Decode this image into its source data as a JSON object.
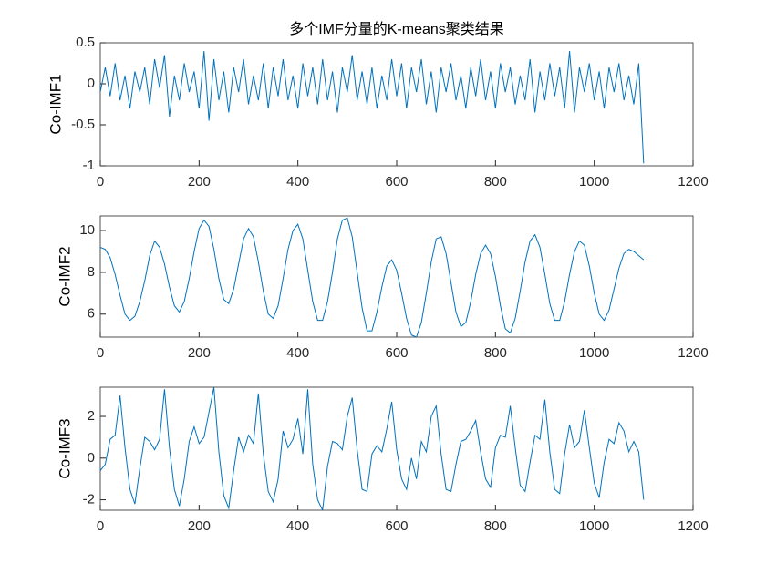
{
  "chart_data": [
    {
      "type": "line",
      "title": "多个IMF分量的K-means聚类结果",
      "ylabel": "Co-IMF1",
      "x": [
        0,
        10,
        20,
        30,
        40,
        50,
        60,
        70,
        80,
        90,
        100,
        110,
        120,
        130,
        140,
        150,
        160,
        170,
        180,
        190,
        200,
        210,
        220,
        230,
        240,
        250,
        260,
        270,
        280,
        290,
        300,
        310,
        320,
        330,
        340,
        350,
        360,
        370,
        380,
        390,
        400,
        410,
        420,
        430,
        440,
        450,
        460,
        470,
        480,
        490,
        500,
        510,
        520,
        530,
        540,
        550,
        560,
        570,
        580,
        590,
        600,
        610,
        620,
        630,
        640,
        650,
        660,
        670,
        680,
        690,
        700,
        710,
        720,
        730,
        740,
        750,
        760,
        770,
        780,
        790,
        800,
        810,
        820,
        830,
        840,
        850,
        860,
        870,
        880,
        890,
        900,
        910,
        920,
        930,
        940,
        950,
        960,
        970,
        980,
        990,
        1000,
        1010,
        1020,
        1030,
        1040,
        1050,
        1060,
        1070,
        1080,
        1090,
        1100
      ],
      "series": [
        {
          "color": "#0072bd",
          "values": [
            -0.1,
            0.2,
            -0.15,
            0.25,
            -0.2,
            0.1,
            -0.3,
            0.15,
            -0.1,
            0.2,
            -0.25,
            0.3,
            -0.05,
            0.35,
            -0.4,
            0.1,
            -0.2,
            0.25,
            -0.1,
            0.15,
            -0.3,
            0.4,
            -0.45,
            0.3,
            -0.2,
            0.15,
            -0.35,
            0.2,
            -0.1,
            0.3,
            -0.25,
            0.1,
            -0.2,
            0.25,
            -0.3,
            0.2,
            -0.15,
            0.3,
            -0.2,
            0.1,
            -0.3,
            0.25,
            -0.15,
            0.2,
            -0.25,
            0.3,
            -0.2,
            0.15,
            -0.35,
            0.2,
            -0.1,
            0.35,
            -0.2,
            0.15,
            -0.25,
            0.2,
            -0.3,
            0.1,
            -0.2,
            0.3,
            -0.15,
            0.25,
            -0.3,
            0.2,
            -0.1,
            0.3,
            -0.25,
            0.15,
            -0.35,
            0.2,
            -0.1,
            0.25,
            -0.2,
            0.1,
            -0.3,
            0.2,
            -0.15,
            0.3,
            -0.2,
            0.15,
            -0.3,
            0.25,
            -0.1,
            0.2,
            -0.25,
            0.1,
            -0.2,
            0.3,
            -0.35,
            0.15,
            -0.2,
            0.25,
            -0.15,
            0.2,
            -0.3,
            0.4,
            -0.35,
            0.2,
            -0.1,
            0.25,
            -0.2,
            0.15,
            -0.3,
            0.2,
            -0.1,
            0.25,
            -0.2,
            0.1,
            -0.25,
            0.25,
            -0.97
          ]
        }
      ],
      "xlim": [
        0,
        1200
      ],
      "xticks": [
        0,
        200,
        400,
        600,
        800,
        1000,
        1200
      ],
      "ylim": [
        -1,
        0.5
      ],
      "yticks": [
        -1,
        -0.5,
        0,
        0.5
      ]
    },
    {
      "type": "line",
      "ylabel": "Co-IMF2",
      "x": [
        0,
        10,
        20,
        30,
        40,
        50,
        60,
        70,
        80,
        90,
        100,
        110,
        120,
        130,
        140,
        150,
        160,
        170,
        180,
        190,
        200,
        210,
        220,
        230,
        240,
        250,
        260,
        270,
        280,
        290,
        300,
        310,
        320,
        330,
        340,
        350,
        360,
        370,
        380,
        390,
        400,
        410,
        420,
        430,
        440,
        450,
        460,
        470,
        480,
        490,
        500,
        510,
        520,
        530,
        540,
        550,
        560,
        570,
        580,
        590,
        600,
        610,
        620,
        630,
        640,
        650,
        660,
        670,
        680,
        690,
        700,
        710,
        720,
        730,
        740,
        750,
        760,
        770,
        780,
        790,
        800,
        810,
        820,
        830,
        840,
        850,
        860,
        870,
        880,
        890,
        900,
        910,
        920,
        930,
        940,
        950,
        960,
        970,
        980,
        990,
        1000,
        1010,
        1020,
        1030,
        1040,
        1050,
        1060,
        1070,
        1080,
        1090,
        1100
      ],
      "series": [
        {
          "color": "#0072bd",
          "values": [
            9.2,
            9.1,
            8.7,
            7.9,
            6.9,
            6.0,
            5.7,
            5.9,
            6.6,
            7.6,
            8.8,
            9.5,
            9.2,
            8.4,
            7.3,
            6.4,
            6.1,
            6.6,
            7.7,
            9.0,
            10.1,
            10.5,
            10.2,
            9.1,
            7.7,
            6.7,
            6.5,
            7.2,
            8.4,
            9.6,
            10.1,
            9.7,
            8.5,
            7.1,
            6.0,
            5.8,
            6.4,
            7.7,
            9.1,
            10.0,
            10.3,
            9.6,
            8.1,
            6.6,
            5.7,
            5.7,
            6.6,
            8.0,
            9.6,
            10.5,
            10.6,
            9.7,
            8.0,
            6.3,
            5.2,
            5.2,
            6.1,
            7.3,
            8.3,
            8.6,
            8.1,
            7.0,
            5.8,
            5.0,
            4.9,
            5.6,
            7.0,
            8.5,
            9.6,
            9.7,
            8.9,
            7.5,
            6.1,
            5.4,
            5.6,
            6.6,
            7.9,
            8.9,
            9.3,
            8.9,
            7.8,
            6.4,
            5.3,
            5.1,
            5.8,
            7.1,
            8.5,
            9.5,
            9.8,
            9.2,
            7.9,
            6.5,
            5.7,
            5.7,
            6.6,
            7.9,
            9.0,
            9.5,
            9.3,
            8.3,
            7.0,
            6.0,
            5.7,
            6.2,
            7.2,
            8.2,
            8.9,
            9.1,
            9.0,
            8.8,
            8.6
          ]
        }
      ],
      "xlim": [
        0,
        1200
      ],
      "xticks": [
        0,
        200,
        400,
        600,
        800,
        1000,
        1200
      ],
      "ylim": [
        4.9,
        10.7
      ],
      "yticks": [
        6,
        8,
        10
      ]
    },
    {
      "type": "line",
      "ylabel": "Co-IMF3",
      "x": [
        0,
        10,
        20,
        30,
        40,
        50,
        60,
        70,
        80,
        90,
        100,
        110,
        120,
        130,
        140,
        150,
        160,
        170,
        180,
        190,
        200,
        210,
        220,
        230,
        240,
        250,
        260,
        270,
        280,
        290,
        300,
        310,
        320,
        330,
        340,
        350,
        360,
        370,
        380,
        390,
        400,
        410,
        420,
        430,
        440,
        450,
        460,
        470,
        480,
        490,
        500,
        510,
        520,
        530,
        540,
        550,
        560,
        570,
        580,
        590,
        600,
        610,
        620,
        630,
        640,
        650,
        660,
        670,
        680,
        690,
        700,
        710,
        720,
        730,
        740,
        750,
        760,
        770,
        780,
        790,
        800,
        810,
        820,
        830,
        840,
        850,
        860,
        870,
        880,
        890,
        900,
        910,
        920,
        930,
        940,
        950,
        960,
        970,
        980,
        990,
        1000,
        1010,
        1020,
        1030,
        1040,
        1050,
        1060,
        1070,
        1080,
        1090,
        1100
      ],
      "series": [
        {
          "color": "#0072bd",
          "values": [
            -0.6,
            -0.3,
            0.9,
            1.1,
            3.0,
            0.5,
            -1.5,
            -2.2,
            -0.5,
            1.0,
            0.8,
            0.4,
            0.9,
            3.3,
            0.5,
            -1.5,
            -2.3,
            -1.0,
            0.8,
            1.5,
            0.7,
            1.0,
            2.2,
            3.4,
            0.3,
            -1.8,
            -2.4,
            -0.6,
            1.0,
            0.3,
            1.1,
            0.7,
            3.1,
            0.2,
            -1.6,
            -2.1,
            -1.0,
            1.3,
            0.5,
            0.9,
            1.9,
            0.2,
            3.3,
            -0.3,
            -2.0,
            -2.5,
            -0.4,
            0.8,
            0.7,
            0.4,
            2.0,
            2.9,
            0.4,
            -1.5,
            -1.6,
            0.2,
            0.6,
            0.3,
            1.4,
            2.7,
            0.4,
            -1.0,
            -1.5,
            0.0,
            -1.0,
            0.8,
            0.3,
            2.0,
            2.5,
            0.2,
            -1.5,
            -1.6,
            -0.3,
            0.8,
            0.9,
            1.3,
            1.8,
            0.3,
            -1.0,
            -1.4,
            0.5,
            1.1,
            1.0,
            2.5,
            0.5,
            -1.3,
            -1.6,
            -0.2,
            1.1,
            0.9,
            2.8,
            0.3,
            -1.5,
            -1.7,
            0.2,
            1.6,
            0.5,
            0.8,
            2.3,
            0.5,
            -1.2,
            -1.9,
            -0.2,
            0.9,
            0.7,
            1.7,
            1.3,
            0.3,
            0.8,
            0.3,
            -2.0
          ]
        }
      ],
      "xlim": [
        0,
        1200
      ],
      "xticks": [
        0,
        200,
        400,
        600,
        800,
        1000,
        1200
      ],
      "ylim": [
        -2.5,
        3.4
      ],
      "yticks": [
        -2,
        0,
        2
      ]
    }
  ]
}
